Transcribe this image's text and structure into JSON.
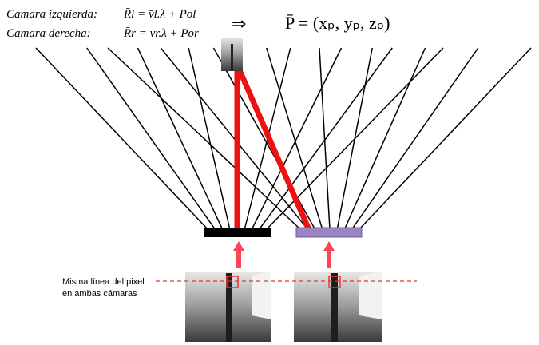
{
  "formulas": {
    "left_label": "Camara izquierda:",
    "left_equation": "R̄l = v̄l.λ + Pol",
    "right_label": "Camara derecha:",
    "right_equation": "R̄r = v̄r̄.λ + Por",
    "implies": "⇒",
    "point": "P̄ = (xₚ, yₚ, zₚ)"
  },
  "annotation": {
    "line1": "Misma línea del pixel",
    "line2": "en ambas cámaras"
  }
}
